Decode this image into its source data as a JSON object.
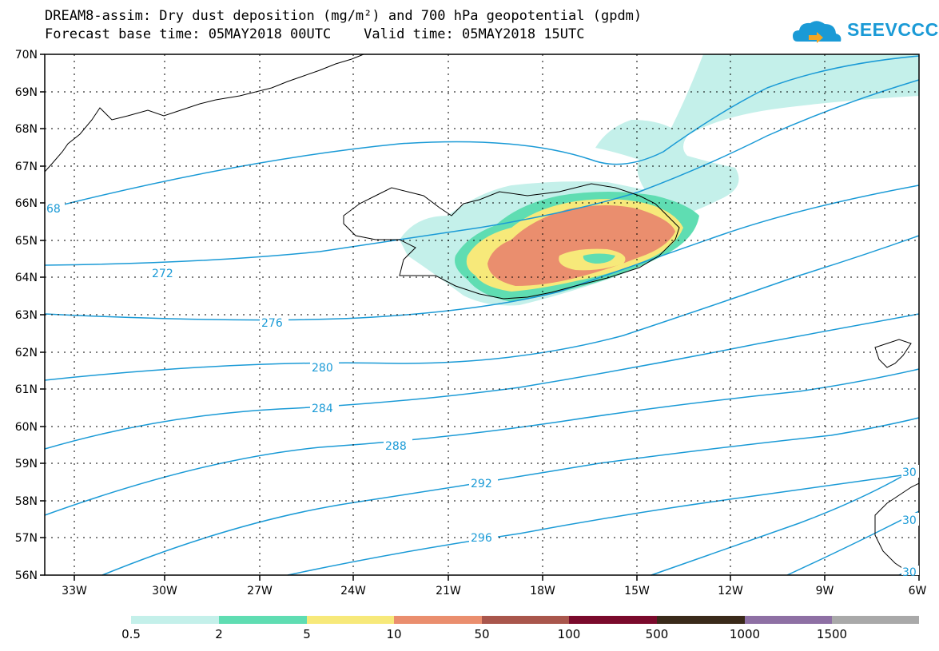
{
  "header": {
    "title_line1": "DREAM8-assim: Dry dust deposition (mg/m²) and 700 hPa geopotential (gpdm)",
    "title_line2": "Forecast base time: 05MAY2018 00UTC    Valid time: 05MAY2018 15UTC"
  },
  "logo": {
    "text": "SEEVCCC",
    "icon": "cloud-icon",
    "color": "#1a9ad6"
  },
  "map": {
    "lat_labels": [
      "70N",
      "69N",
      "68N",
      "67N",
      "66N",
      "65N",
      "64N",
      "63N",
      "62N",
      "61N",
      "60N",
      "59N",
      "58N",
      "57N",
      "56N"
    ],
    "lon_labels": [
      "33W",
      "30W",
      "27W",
      "24W",
      "21W",
      "18W",
      "15W",
      "12W",
      "9W",
      "6W"
    ],
    "contour_color": "#1a9ad6",
    "contour_labels": [
      "68",
      "272",
      "276",
      "280",
      "284",
      "288",
      "292",
      "296",
      "30",
      "30",
      "30"
    ]
  },
  "legend": {
    "colors": [
      "#c4f0ea",
      "#5fddb2",
      "#f7e97a",
      "#ea8e6e",
      "#a9564c",
      "#7a0a2c",
      "#3a2a1a",
      "#8e70a4",
      "#a9a9a9"
    ],
    "labels": [
      "0.5",
      "2",
      "5",
      "10",
      "50",
      "100",
      "500",
      "1000",
      "1500"
    ]
  }
}
